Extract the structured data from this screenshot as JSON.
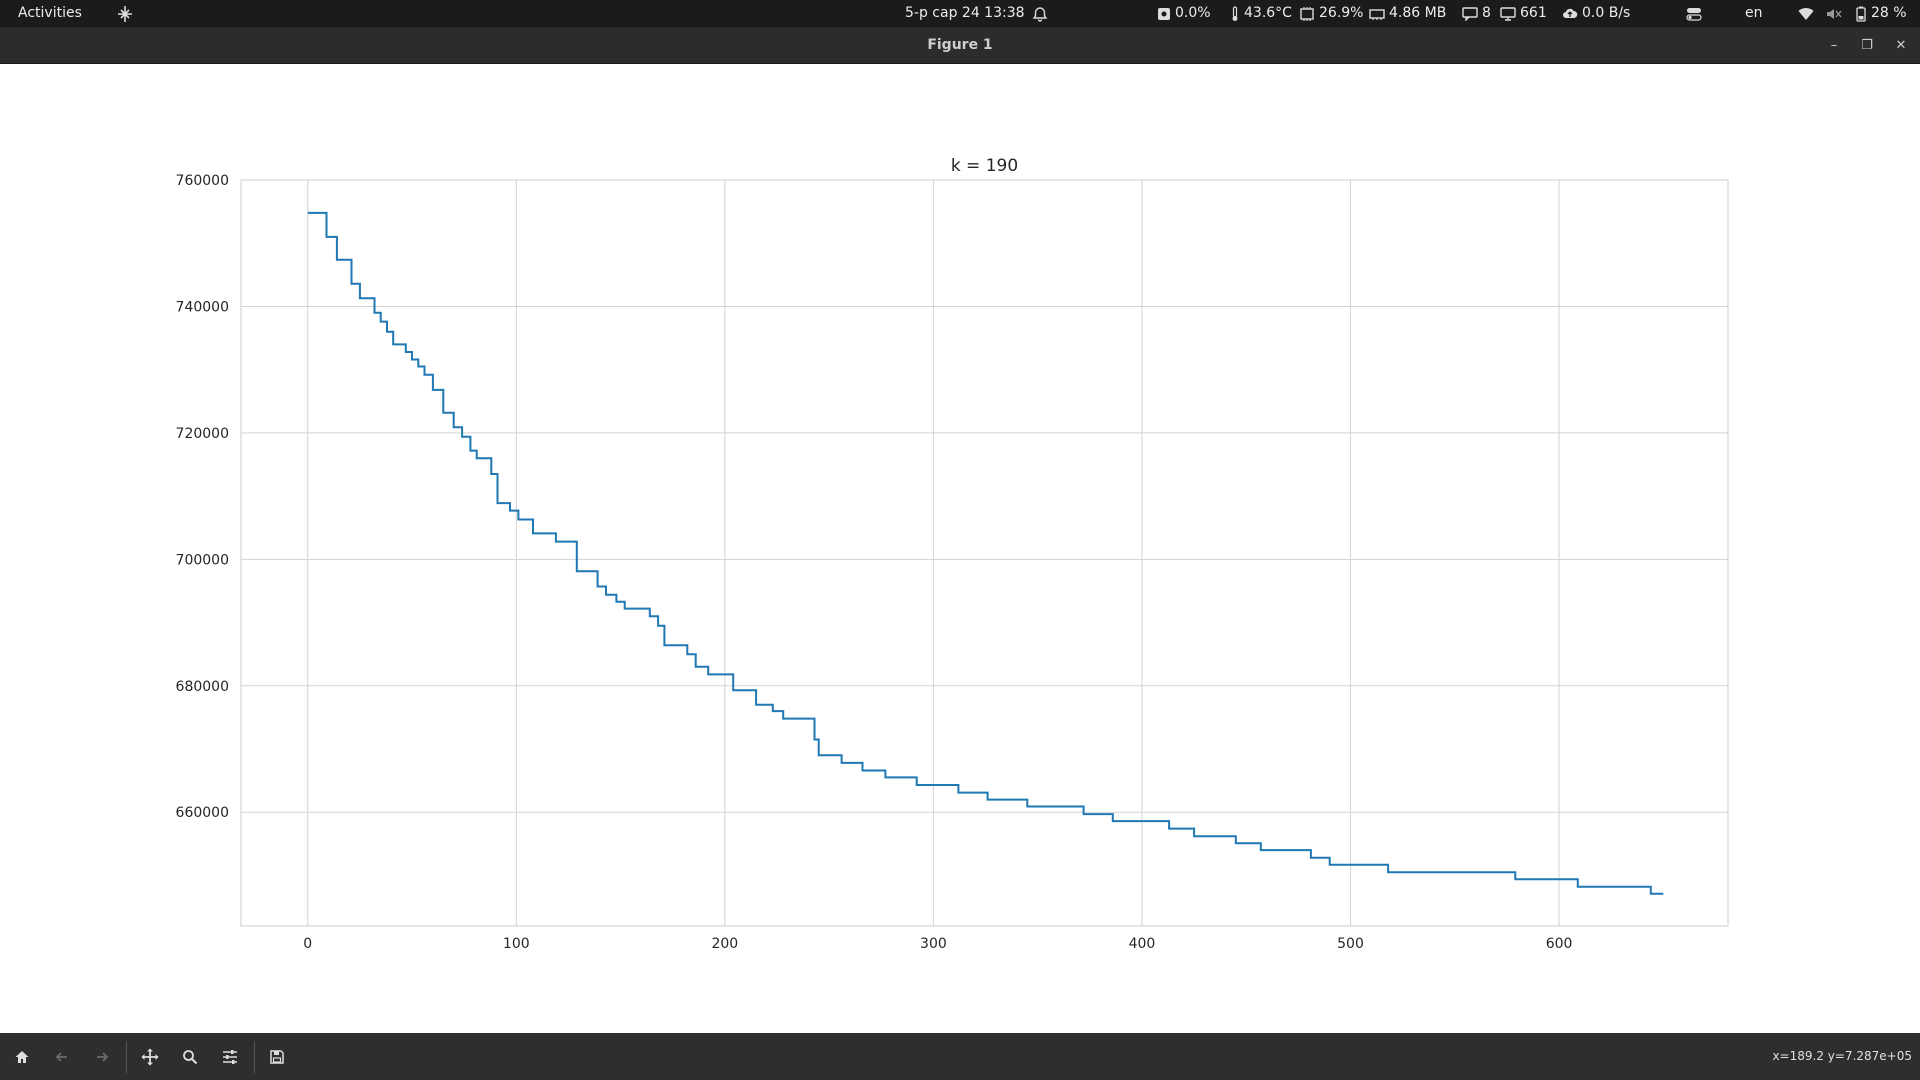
{
  "topbar": {
    "activities": "Activities",
    "datetime": "5-р сар 24  13:38",
    "disk": "0.0%",
    "temperature": "43.6°C",
    "cpu": "26.9%",
    "memory": "4.86 MB",
    "notifications_a": "8",
    "notifications_b": "661",
    "network": "0.0 B/s",
    "language": "en",
    "battery": "28 %"
  },
  "window": {
    "title": "Figure 1",
    "minimize": "–",
    "maximize": "❐",
    "close": "✕"
  },
  "statusbar": {
    "coords": "x=189.2 y=7.287e+05"
  },
  "chart_data": {
    "type": "line",
    "title": "k = 190",
    "xlabel": "",
    "ylabel": "",
    "xlim": [
      -32,
      681
    ],
    "ylim": [
      642000,
      760000
    ],
    "xticks": [
      0,
      100,
      200,
      300,
      400,
      500,
      600
    ],
    "yticks": [
      660000,
      680000,
      700000,
      720000,
      740000,
      760000
    ],
    "grid": true,
    "color": "#1f77b4",
    "series": [
      {
        "name": "",
        "points": [
          [
            0,
            754800
          ],
          [
            9,
            754800
          ],
          [
            9,
            751000
          ],
          [
            14,
            751000
          ],
          [
            14,
            747400
          ],
          [
            21,
            747400
          ],
          [
            21,
            743600
          ],
          [
            25,
            743600
          ],
          [
            25,
            741300
          ],
          [
            32,
            741300
          ],
          [
            32,
            739000
          ],
          [
            35,
            739000
          ],
          [
            35,
            737600
          ],
          [
            38,
            737600
          ],
          [
            38,
            736000
          ],
          [
            41,
            736000
          ],
          [
            41,
            734000
          ],
          [
            47,
            734000
          ],
          [
            47,
            732800
          ],
          [
            50,
            732800
          ],
          [
            50,
            731600
          ],
          [
            53,
            731600
          ],
          [
            53,
            730500
          ],
          [
            56,
            730500
          ],
          [
            56,
            729200
          ],
          [
            60,
            729200
          ],
          [
            60,
            726800
          ],
          [
            65,
            726800
          ],
          [
            65,
            723200
          ],
          [
            70,
            723200
          ],
          [
            70,
            720900
          ],
          [
            74,
            720900
          ],
          [
            74,
            719400
          ],
          [
            78,
            719400
          ],
          [
            78,
            717200
          ],
          [
            81,
            717200
          ],
          [
            81,
            716000
          ],
          [
            88,
            716000
          ],
          [
            88,
            713500
          ],
          [
            91,
            713500
          ],
          [
            91,
            708900
          ],
          [
            97,
            708900
          ],
          [
            97,
            707700
          ],
          [
            101,
            707700
          ],
          [
            101,
            706300
          ],
          [
            108,
            706300
          ],
          [
            108,
            704100
          ],
          [
            119,
            704100
          ],
          [
            119,
            702800
          ],
          [
            129,
            702800
          ],
          [
            129,
            698100
          ],
          [
            139,
            698100
          ],
          [
            139,
            695700
          ],
          [
            143,
            695700
          ],
          [
            143,
            694400
          ],
          [
            148,
            694400
          ],
          [
            148,
            693300
          ],
          [
            152,
            693300
          ],
          [
            152,
            692200
          ],
          [
            164,
            692200
          ],
          [
            164,
            691000
          ],
          [
            168,
            691000
          ],
          [
            168,
            689500
          ],
          [
            171,
            689500
          ],
          [
            171,
            686400
          ],
          [
            182,
            686400
          ],
          [
            182,
            685000
          ],
          [
            186,
            685000
          ],
          [
            186,
            683000
          ],
          [
            192,
            683000
          ],
          [
            192,
            681800
          ],
          [
            204,
            681800
          ],
          [
            204,
            679300
          ],
          [
            215,
            679300
          ],
          [
            215,
            677000
          ],
          [
            223,
            677000
          ],
          [
            223,
            676000
          ],
          [
            228,
            676000
          ],
          [
            228,
            674800
          ],
          [
            243,
            674800
          ],
          [
            243,
            671500
          ],
          [
            245,
            671500
          ],
          [
            245,
            669000
          ],
          [
            256,
            669000
          ],
          [
            256,
            667800
          ],
          [
            266,
            667800
          ],
          [
            266,
            666600
          ],
          [
            277,
            666600
          ],
          [
            277,
            665500
          ],
          [
            292,
            665500
          ],
          [
            292,
            664300
          ],
          [
            312,
            664300
          ],
          [
            312,
            663100
          ],
          [
            326,
            663100
          ],
          [
            326,
            662000
          ],
          [
            345,
            662000
          ],
          [
            345,
            660900
          ],
          [
            372,
            660900
          ],
          [
            372,
            659700
          ],
          [
            386,
            659700
          ],
          [
            386,
            658600
          ],
          [
            413,
            658600
          ],
          [
            413,
            657400
          ],
          [
            425,
            657400
          ],
          [
            425,
            656200
          ],
          [
            445,
            656200
          ],
          [
            445,
            655100
          ],
          [
            457,
            655100
          ],
          [
            457,
            654000
          ],
          [
            481,
            654000
          ],
          [
            481,
            652800
          ],
          [
            490,
            652800
          ],
          [
            490,
            651700
          ],
          [
            518,
            651700
          ],
          [
            518,
            650500
          ],
          [
            579,
            650500
          ],
          [
            579,
            649400
          ],
          [
            609,
            649400
          ],
          [
            609,
            648200
          ],
          [
            644,
            648200
          ],
          [
            644,
            647100
          ],
          [
            650,
            647100
          ]
        ]
      }
    ]
  }
}
